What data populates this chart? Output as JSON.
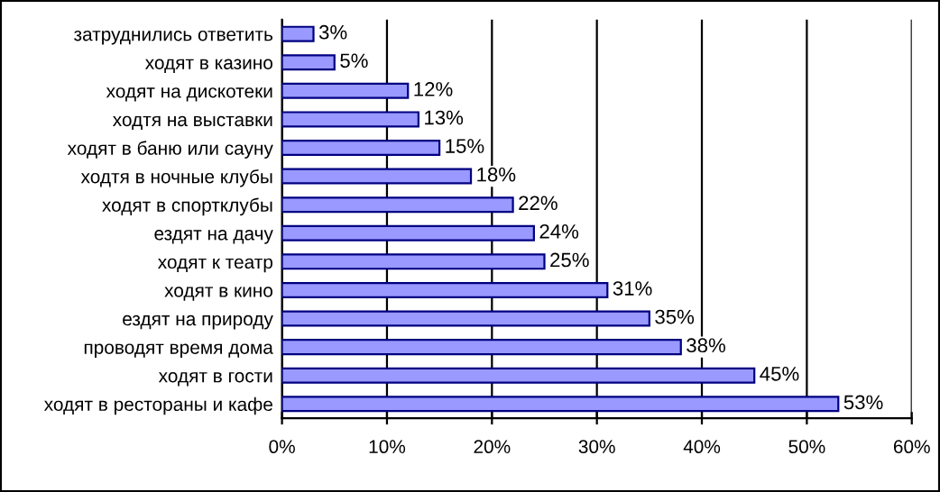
{
  "chart_data": {
    "type": "bar",
    "orientation": "horizontal",
    "categories": [
      "затруднились ответить",
      "ходят в казино",
      "ходят на дискотеки",
      "ходтя на выставки",
      "ходят в баню или сауну",
      "ходтя в ночные клубы",
      "ходят в спортклубы",
      "ездят на дачу",
      "ходят к театр",
      "ходят в кино",
      "ездят на природу",
      "проводят время дома",
      "ходят в гости",
      "ходят в рестораны и кафе"
    ],
    "values": [
      3,
      5,
      12,
      13,
      15,
      18,
      22,
      24,
      25,
      31,
      35,
      38,
      45,
      53
    ],
    "value_labels": [
      "3%",
      "5%",
      "12%",
      "13%",
      "15%",
      "18%",
      "22%",
      "24%",
      "25%",
      "31%",
      "35%",
      "38%",
      "45%",
      "53%"
    ],
    "color": "#9999ff",
    "xlim": [
      0,
      60
    ],
    "xticks": [
      {
        "value": 0,
        "label": "0%"
      },
      {
        "value": 10,
        "label": "10%"
      },
      {
        "value": 20,
        "label": "20%"
      },
      {
        "value": 30,
        "label": "30%"
      },
      {
        "value": 40,
        "label": "40%"
      },
      {
        "value": 50,
        "label": "50%"
      },
      {
        "value": 60,
        "label": "60%"
      }
    ],
    "grid": "x",
    "legend": false
  }
}
